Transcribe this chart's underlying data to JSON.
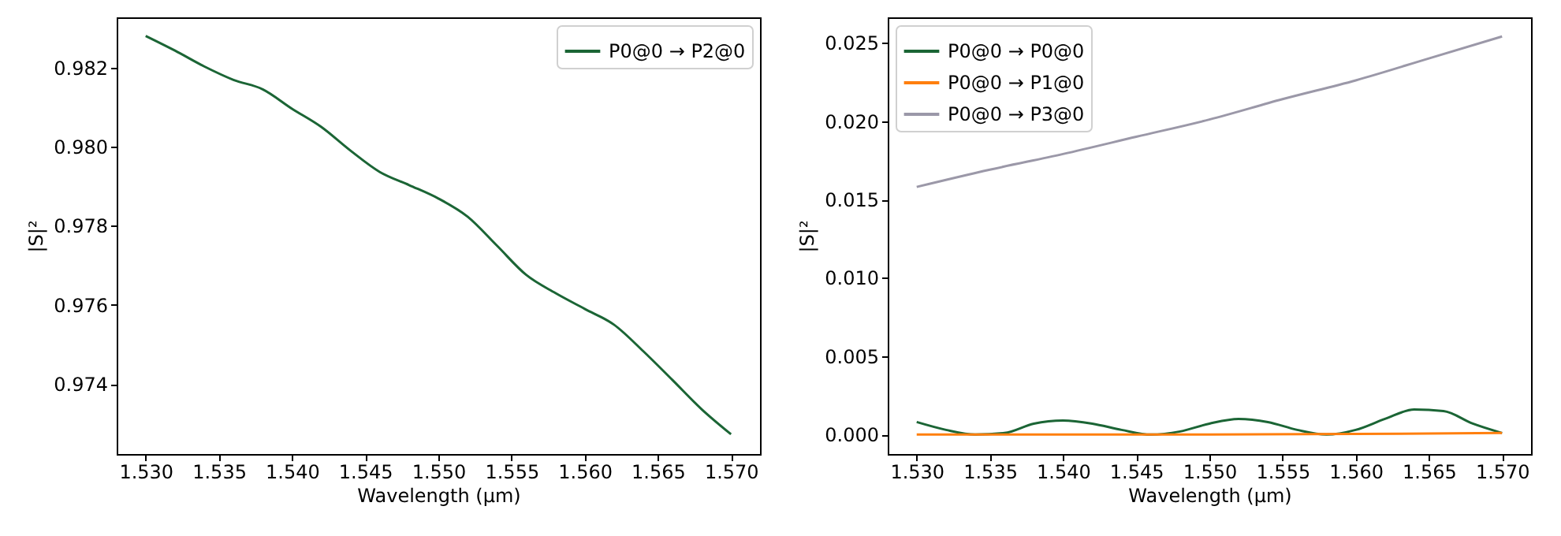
{
  "chart_data": [
    {
      "type": "line",
      "xlabel": "Wavelength (µm)",
      "ylabel": "|S|²",
      "legend": "top right",
      "x": [
        1.53,
        1.532,
        1.534,
        1.536,
        1.538,
        1.54,
        1.542,
        1.544,
        1.546,
        1.548,
        1.55,
        1.552,
        1.554,
        1.556,
        1.558,
        1.56,
        1.562,
        1.564,
        1.566,
        1.568,
        1.57
      ],
      "series": [
        {
          "name": "P0@0 → P2@0",
          "color": "#1b6535",
          "values": [
            0.9828,
            0.98243,
            0.98203,
            0.98169,
            0.98145,
            0.98096,
            0.9805,
            0.9799,
            0.97936,
            0.97903,
            0.97869,
            0.97823,
            0.9775,
            0.97676,
            0.9763,
            0.9759,
            0.9755,
            0.97483,
            0.9741,
            0.97336,
            0.97273
          ]
        }
      ],
      "xlim": [
        1.52802,
        1.57198
      ],
      "ylim": [
        0.97223,
        0.98327
      ],
      "xticks": [
        {
          "value": 1.53,
          "label": "1.530"
        },
        {
          "value": 1.535,
          "label": "1.535"
        },
        {
          "value": 1.54,
          "label": "1.540"
        },
        {
          "value": 1.545,
          "label": "1.545"
        },
        {
          "value": 1.55,
          "label": "1.550"
        },
        {
          "value": 1.555,
          "label": "1.555"
        },
        {
          "value": 1.56,
          "label": "1.560"
        },
        {
          "value": 1.565,
          "label": "1.565"
        },
        {
          "value": 1.57,
          "label": "1.570"
        }
      ],
      "yticks": [
        0.974,
        0.976,
        0.978,
        {
          "value": 0.98,
          "label": "0.980"
        },
        0.982
      ]
    },
    {
      "type": "line",
      "xlabel": "Wavelength (µm)",
      "ylabel": "|S|²",
      "legend": "top left",
      "x": [
        1.53,
        1.532,
        1.534,
        1.536,
        1.538,
        1.54,
        1.542,
        1.544,
        1.546,
        1.548,
        1.55,
        1.552,
        1.554,
        1.556,
        1.558,
        1.56,
        1.562,
        1.564,
        1.566,
        1.568,
        1.57
      ],
      "series": [
        {
          "name": "P0@0 → P0@0",
          "color": "#1b6535",
          "values": [
            0.0008,
            0.0003,
            0.0,
            0.0001,
            0.0007,
            0.0009,
            0.0007,
            0.0003,
            0.0,
            0.0002,
            0.0007,
            0.001,
            0.0008,
            0.0003,
            0.0,
            0.0003,
            0.001,
            0.0016,
            0.0015,
            0.0007,
            0.0001
          ]
        },
        {
          "name": "P0@0 → P1@0",
          "color": "#ff7f0e",
          "x": [
            1.53,
            1.55,
            1.57
          ],
          "values": [
            0.0,
            0.0,
            0.0001
          ]
        },
        {
          "name": "P0@0 → P3@0",
          "color": "#9b98a8",
          "x": [
            1.53,
            1.535,
            1.54,
            1.545,
            1.55,
            1.555,
            1.56,
            1.565,
            1.57
          ],
          "values": [
            0.0158,
            0.0169,
            0.0179,
            0.019,
            0.0201,
            0.0214,
            0.0226,
            0.024,
            0.0254
          ]
        }
      ],
      "xlim": [
        1.52802,
        1.57198
      ],
      "ylim": [
        -0.00124,
        0.02662
      ],
      "xticks": [
        {
          "value": 1.53,
          "label": "1.530"
        },
        {
          "value": 1.535,
          "label": "1.535"
        },
        {
          "value": 1.54,
          "label": "1.540"
        },
        {
          "value": 1.545,
          "label": "1.545"
        },
        {
          "value": 1.55,
          "label": "1.550"
        },
        {
          "value": 1.555,
          "label": "1.555"
        },
        {
          "value": 1.56,
          "label": "1.560"
        },
        {
          "value": 1.565,
          "label": "1.565"
        },
        {
          "value": 1.57,
          "label": "1.570"
        }
      ],
      "yticks": [
        {
          "value": 0,
          "label": "0.000"
        },
        0.005,
        {
          "value": 0.01,
          "label": "0.010"
        },
        0.015,
        {
          "value": 0.02,
          "label": "0.020"
        },
        0.025
      ]
    }
  ]
}
